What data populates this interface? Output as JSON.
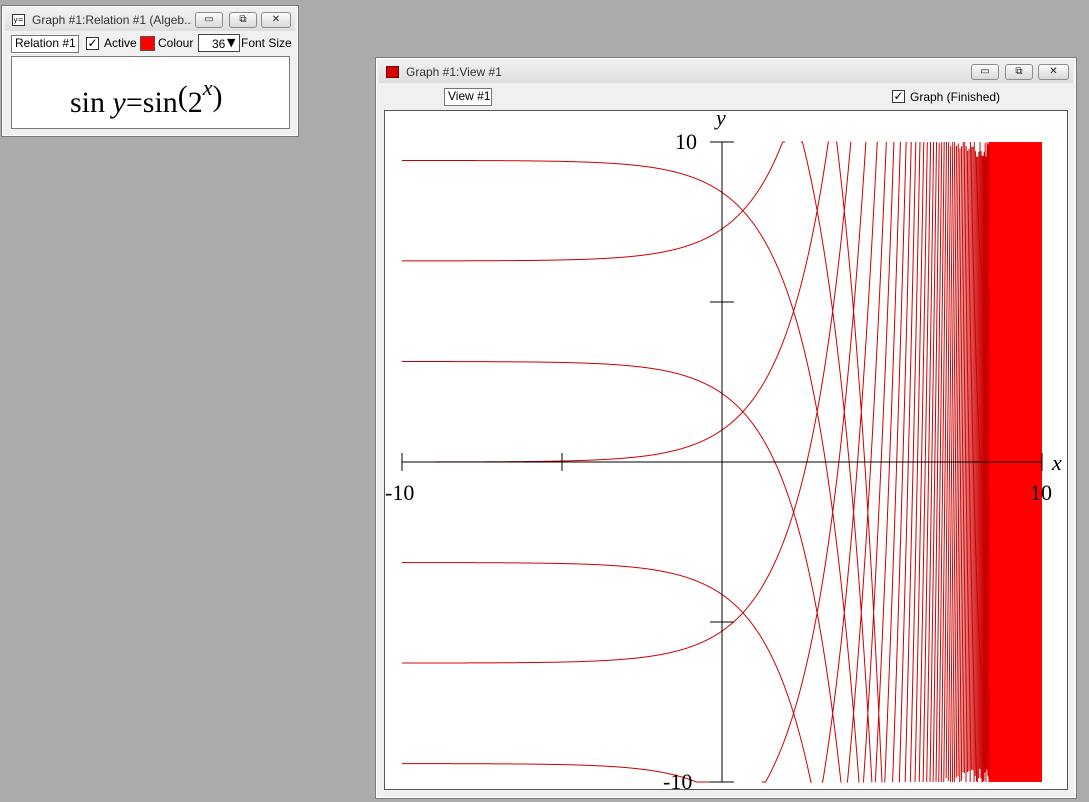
{
  "relation_window": {
    "title": "Graph #1:Relation #1 (Algeb...",
    "tab_label": "Relation #1",
    "active_label": "Active",
    "active_checked": true,
    "colour_label": "Colour",
    "colour_value": "#ff0000",
    "font_size_value": "36",
    "font_size_label": "Font Size",
    "formula": {
      "lhs_fn": "sin",
      "lhs_var": "y",
      "equals": "=",
      "rhs_fn": "sin",
      "open_paren": "(",
      "base": "2",
      "exponent": "x",
      "close_paren": ")"
    }
  },
  "view_window": {
    "title": "Graph #1:View #1",
    "tab_label": "View #1",
    "graph_checked": true,
    "graph_status": "Graph (Finished)"
  },
  "window_buttons": {
    "minimize": "▭",
    "restore": "⧉",
    "close": "✕"
  },
  "chart_data": {
    "type": "line",
    "relation": "sin y = sin(2^x)",
    "curve_color": "#cc0000",
    "fill_color": "#ff0000",
    "xlabel": "x",
    "ylabel": "y",
    "xlim": [
      -10,
      10
    ],
    "ylim": [
      -10,
      10
    ],
    "x_tick_labels": [
      "-10",
      "10"
    ],
    "y_tick_labels": [
      "10",
      "-10"
    ],
    "grid": false
  }
}
